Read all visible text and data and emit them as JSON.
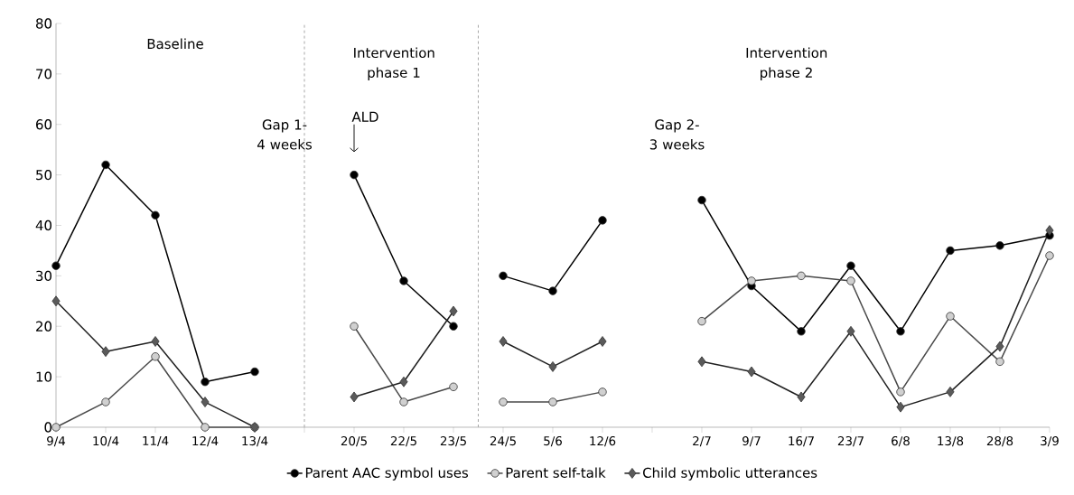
{
  "chart_data": {
    "type": "line",
    "categories": [
      "9/4",
      "10/4",
      "11/4",
      "12/4",
      "13/4",
      null,
      "20/5",
      "22/5",
      "23/5",
      "24/5",
      "5/6",
      "12/6",
      null,
      "2/7",
      "9/7",
      "16/7",
      "23/7",
      "6/8",
      "13/8",
      "28/8",
      "3/9"
    ],
    "series": [
      {
        "name": "Parent AAC symbol uses",
        "color": "#000000",
        "marker": "circle",
        "values": [
          32,
          52,
          42,
          9,
          11,
          null,
          50,
          29,
          20,
          30,
          27,
          41,
          null,
          45,
          28,
          19,
          32,
          19,
          35,
          36,
          38
        ]
      },
      {
        "name": "Parent self-talk",
        "color": "#d0d0d0",
        "marker": "circle",
        "values": [
          0,
          5,
          14,
          0,
          0,
          null,
          20,
          5,
          8,
          5,
          5,
          7,
          null,
          21,
          29,
          30,
          29,
          7,
          22,
          13,
          34
        ]
      },
      {
        "name": "Child symbolic utterances",
        "color": "#5a5a5a",
        "marker": "diamond",
        "values": [
          25,
          15,
          17,
          5,
          0,
          null,
          6,
          9,
          23,
          17,
          12,
          17,
          null,
          13,
          11,
          6,
          19,
          4,
          7,
          16,
          39
        ]
      }
    ],
    "ylim": [
      0,
      80
    ],
    "yticks": [
      0,
      10,
      20,
      30,
      40,
      50,
      60,
      70,
      80
    ],
    "annotations": [
      "Baseline",
      "Intervention phase 1",
      "Intervention phase 2",
      "Gap 1- 4 weeks",
      "ALD",
      "Gap 2- 3 weeks"
    ],
    "legend": "bottom",
    "line_style": "solid"
  }
}
